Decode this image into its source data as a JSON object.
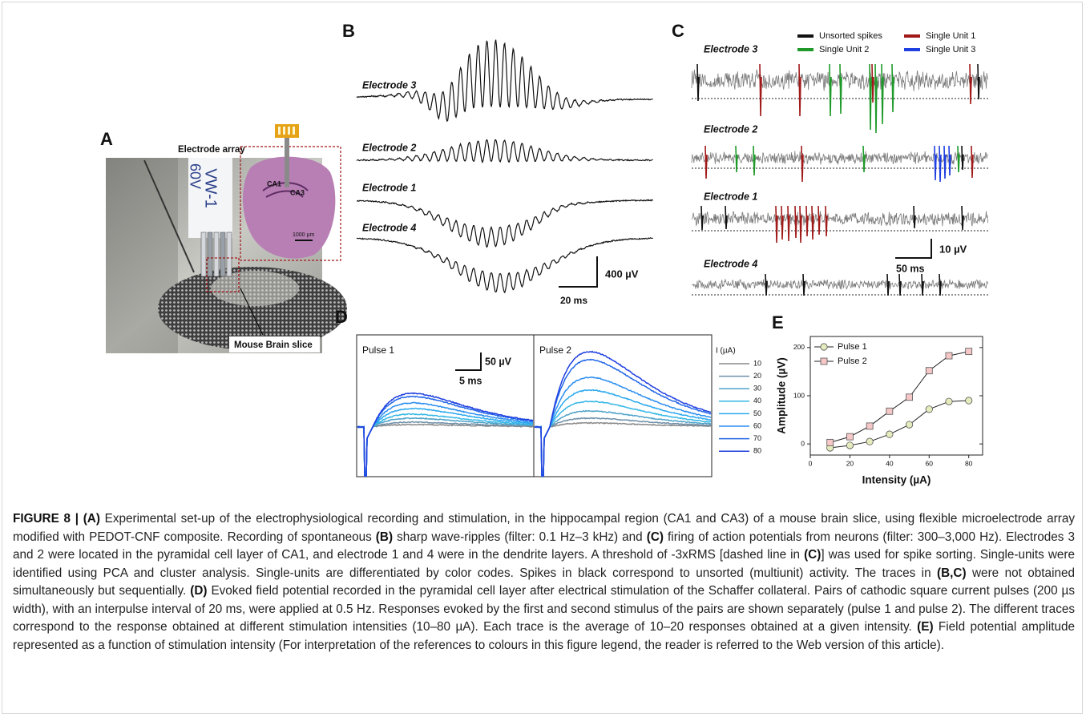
{
  "panels": {
    "A": {
      "label": "A",
      "electrode_array": "Electrode array",
      "array_text_1": "VW-1",
      "array_text_2": "60V",
      "ca1": "CA1",
      "ca3": "CA3",
      "scale": "1000 µm",
      "slice": "Mouse Brain slice"
    },
    "B": {
      "label": "B",
      "electrodes": [
        "Electrode 3",
        "Electrode 2",
        "Electrode 1",
        "Electrode 4"
      ],
      "scale_y": "400 µV",
      "scale_x": "20 ms"
    },
    "C": {
      "label": "C",
      "legend": [
        {
          "name": "Unsorted spikes",
          "color": "#111111"
        },
        {
          "name": "Single Unit 1",
          "color": "#a11a1a"
        },
        {
          "name": "Single Unit 2",
          "color": "#1f9a2a"
        },
        {
          "name": "Single Unit 3",
          "color": "#1f3fe0"
        }
      ],
      "electrodes": [
        "Electrode 3",
        "Electrode 2",
        "Electrode 1",
        "Electrode 4"
      ],
      "scale_y": "10 µV",
      "scale_x": "50 ms"
    },
    "D": {
      "label": "D",
      "pulses": [
        "Pulse 1",
        "Pulse 2"
      ],
      "scale_y": "50 µV",
      "scale_x": "5 ms",
      "legend_title": "I (µA)",
      "intensities": [
        10,
        20,
        30,
        40,
        50,
        60,
        70,
        80
      ],
      "colors": [
        "#8a8a8a",
        "#6f8fa8",
        "#4fa3c8",
        "#35b7e6",
        "#2aa8ef",
        "#2a8ef0",
        "#2266e8",
        "#1f3fe0"
      ]
    },
    "E": {
      "label": "E",
      "type": "line",
      "xlabel": "Intensity (µA)",
      "ylabel": "Amplitude (µV)",
      "x": [
        10,
        20,
        30,
        40,
        50,
        60,
        70,
        80
      ],
      "series": [
        {
          "name": "Pulse 1",
          "color": "#e6ebbd",
          "marker": "circle",
          "values": [
            -8,
            -3,
            5,
            20,
            40,
            72,
            88,
            90
          ]
        },
        {
          "name": "Pulse 2",
          "color": "#f6c7c7",
          "marker": "square",
          "values": [
            3,
            15,
            37,
            68,
            97,
            152,
            183,
            192
          ]
        }
      ],
      "xlim": [
        0,
        87
      ],
      "ylim": [
        -23,
        223
      ],
      "xticks": [
        0,
        20,
        40,
        60,
        80
      ],
      "yticks": [
        0,
        100,
        200
      ]
    }
  },
  "caption": [
    {
      "text": "FIGURE 8 | (A)",
      "bold": true
    },
    {
      "text": " Experimental set-up of the electrophysiological recording and stimulation, in the hippocampal region (CA1 and CA3) of a mouse brain slice, using flexible microelectrode array modified with PEDOT-CNF composite. Recording of spontaneous "
    },
    {
      "text": "(B)",
      "bold": true
    },
    {
      "text": " sharp wave-ripples (filter: 0.1 Hz–3 kHz) and "
    },
    {
      "text": "(C)",
      "bold": true
    },
    {
      "text": " firing of action potentials from neurons (filter: 300–3,000 Hz). Electrodes 3 and 2 were located in the pyramidal cell layer of CA1, and electrode 1 and 4 were in the dendrite layers. A threshold of -3xRMS [dashed line in "
    },
    {
      "text": "(C)",
      "bold": true
    },
    {
      "text": "] was used for spike sorting. Single-units were identified using PCA and cluster analysis. Single-units are differentiated by color codes. Spikes in black correspond to unsorted (multiunit) activity. The traces in "
    },
    {
      "text": "(B,C)",
      "bold": true
    },
    {
      "text": " were not obtained simultaneously but sequentially. "
    },
    {
      "text": "(D)",
      "bold": true
    },
    {
      "text": " Evoked field potential recorded in the pyramidal cell layer after electrical stimulation of the Schaffer collateral. Pairs of cathodic square current pulses (200 µs width), with an interpulse interval of 20 ms, were applied at 0.5 Hz. Responses evoked by the first and second stimulus of the pairs are shown separately (pulse 1 and pulse 2). The different traces correspond to the response obtained at different stimulation intensities (10–80 µA). Each trace is the average of 10–20 responses obtained at a given intensity. "
    },
    {
      "text": "(E)",
      "bold": true
    },
    {
      "text": " Field potential amplitude represented as a function of stimulation intensity (For interpretation of the references to colours in this figure legend, the reader is referred to the Web version of this article)."
    }
  ]
}
